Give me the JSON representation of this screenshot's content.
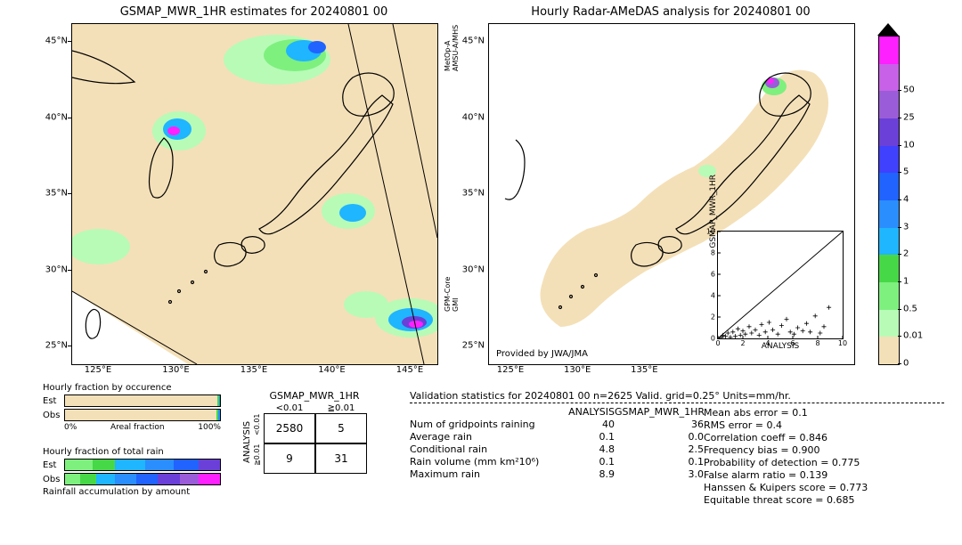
{
  "palette": {
    "stops": [
      "#f4e0b8",
      "#b7fbb7",
      "#7ef07e",
      "#47d847",
      "#1fb5ff",
      "#2a8eff",
      "#2063ff",
      "#4040ff",
      "#6a40d8",
      "#9a5cd8",
      "#c860e8",
      "#ff20ff",
      "#c89314",
      "#000000"
    ],
    "bounds": [
      "0",
      "0.01",
      "0.5",
      "1",
      "2",
      "3",
      "4",
      "5",
      "10",
      "25",
      "50"
    ],
    "arrow_top_color": "#000000"
  },
  "left_panel": {
    "title": "GSMAP_MWR_1HR estimates for 20240801 00",
    "lat_ticks": [
      "25°N",
      "30°N",
      "35°N",
      "40°N",
      "45°N"
    ],
    "lon_ticks": [
      "125°E",
      "130°E",
      "135°E",
      "140°E",
      "145°E"
    ],
    "sat_labels": [
      "MetOp-A\nAMSU-A/MHS",
      "GPM-Core\nGMI"
    ]
  },
  "right_panel": {
    "title": "Hourly Radar-AMeDAS analysis for 20240801 00",
    "lat_ticks": [
      "25°N",
      "30°N",
      "35°N",
      "40°N",
      "45°N"
    ],
    "lon_ticks": [
      "125°E",
      "130°E",
      "135°E"
    ],
    "provided": "Provided by JWA/JMA"
  },
  "inset": {
    "xlabel": "ANALYSIS",
    "ylabel": "GSMAP_MWR_1HR",
    "xlim": [
      0,
      10
    ],
    "ylim": [
      0,
      10
    ],
    "ticks": [
      0,
      2,
      4,
      6,
      8,
      10
    ],
    "points": [
      [
        0.3,
        0.1
      ],
      [
        0.4,
        0.3
      ],
      [
        0.6,
        0.2
      ],
      [
        0.8,
        0.5
      ],
      [
        1.0,
        0.1
      ],
      [
        1.2,
        0.6
      ],
      [
        1.4,
        0.2
      ],
      [
        1.6,
        0.9
      ],
      [
        1.8,
        0.3
      ],
      [
        2.0,
        0.7
      ],
      [
        2.2,
        0.4
      ],
      [
        2.5,
        1.1
      ],
      [
        2.7,
        0.5
      ],
      [
        3.0,
        0.8
      ],
      [
        3.3,
        0.3
      ],
      [
        3.5,
        1.3
      ],
      [
        3.8,
        0.6
      ],
      [
        4.1,
        1.5
      ],
      [
        4.4,
        0.8
      ],
      [
        4.8,
        0.4
      ],
      [
        5.1,
        1.2
      ],
      [
        5.5,
        1.8
      ],
      [
        5.8,
        0.6
      ],
      [
        6.1,
        0.4
      ],
      [
        6.4,
        1.0
      ],
      [
        6.8,
        0.7
      ],
      [
        7.1,
        1.4
      ],
      [
        7.4,
        0.6
      ],
      [
        7.8,
        2.1
      ],
      [
        8.2,
        0.5
      ],
      [
        8.5,
        1.1
      ],
      [
        8.9,
        2.9
      ]
    ]
  },
  "hourly_fraction": {
    "occurrence": {
      "title": "Hourly fraction by occurence",
      "rows": [
        {
          "label": "Est",
          "segments": [
            {
              "color": "#f4e0b8",
              "pct": 98.2
            },
            {
              "color": "#47d847",
              "pct": 1.0
            },
            {
              "color": "#2a8eff",
              "pct": 0.8
            }
          ]
        },
        {
          "label": "Obs",
          "segments": [
            {
              "color": "#f4e0b8",
              "pct": 97.8
            },
            {
              "color": "#47d847",
              "pct": 1.2
            },
            {
              "color": "#2a8eff",
              "pct": 1.0
            }
          ]
        }
      ],
      "xaxis": {
        "left": "0%",
        "mid": "Areal fraction",
        "right": "100%"
      }
    },
    "total_rain": {
      "title": "Hourly fraction of total rain",
      "rows": [
        {
          "label": "Est",
          "segments": [
            {
              "color": "#7ef07e",
              "pct": 18
            },
            {
              "color": "#47d847",
              "pct": 14
            },
            {
              "color": "#1fb5ff",
              "pct": 20
            },
            {
              "color": "#2a8eff",
              "pct": 18
            },
            {
              "color": "#2063ff",
              "pct": 16
            },
            {
              "color": "#6a40d8",
              "pct": 14
            }
          ]
        },
        {
          "label": "Obs",
          "segments": [
            {
              "color": "#7ef07e",
              "pct": 10
            },
            {
              "color": "#47d847",
              "pct": 10
            },
            {
              "color": "#1fb5ff",
              "pct": 12
            },
            {
              "color": "#2a8eff",
              "pct": 14
            },
            {
              "color": "#2063ff",
              "pct": 14
            },
            {
              "color": "#6a40d8",
              "pct": 14
            },
            {
              "color": "#9a5cd8",
              "pct": 12
            },
            {
              "color": "#ff20ff",
              "pct": 14
            }
          ]
        }
      ],
      "caption": "Rainfall accumulation by amount"
    }
  },
  "contingency": {
    "title": "GSMAP_MWR_1HR",
    "col_headers": [
      "<0.01",
      "≧0.01"
    ],
    "row_headers": [
      "<0.01",
      "≧0.01"
    ],
    "ylabel": "ANALYSIS",
    "cells": [
      [
        "2580",
        "5"
      ],
      [
        "9",
        "31"
      ]
    ]
  },
  "validation": {
    "title": "Validation statistics for 20240801 00  n=2625 Valid. grid=0.25° Units=mm/hr.",
    "col_headers": [
      "ANALYSIS",
      "GSMAP_MWR_1HR"
    ],
    "rows": [
      {
        "label": "Num of gridpoints raining",
        "a": "40",
        "b": "36"
      },
      {
        "label": "Average rain",
        "a": "0.1",
        "b": "0.0"
      },
      {
        "label": "Conditional rain",
        "a": "4.8",
        "b": "2.5"
      },
      {
        "label": "Rain volume (mm km²10⁶)",
        "a": "0.1",
        "b": "0.1"
      },
      {
        "label": "Maximum rain",
        "a": "8.9",
        "b": "3.0"
      }
    ],
    "scores": [
      {
        "label": "Mean abs error =",
        "value": "   0.1"
      },
      {
        "label": "RMS error =",
        "value": "   0.4"
      },
      {
        "label": "Correlation coeff =",
        "value": " 0.846"
      },
      {
        "label": "Frequency bias =",
        "value": " 0.900"
      },
      {
        "label": "Probability of detection =",
        "value": " 0.775"
      },
      {
        "label": "False alarm ratio =",
        "value": " 0.139"
      },
      {
        "label": "Hanssen & Kuipers score =",
        "value": " 0.773"
      },
      {
        "label": "Equitable threat score =",
        "value": " 0.685"
      }
    ]
  }
}
